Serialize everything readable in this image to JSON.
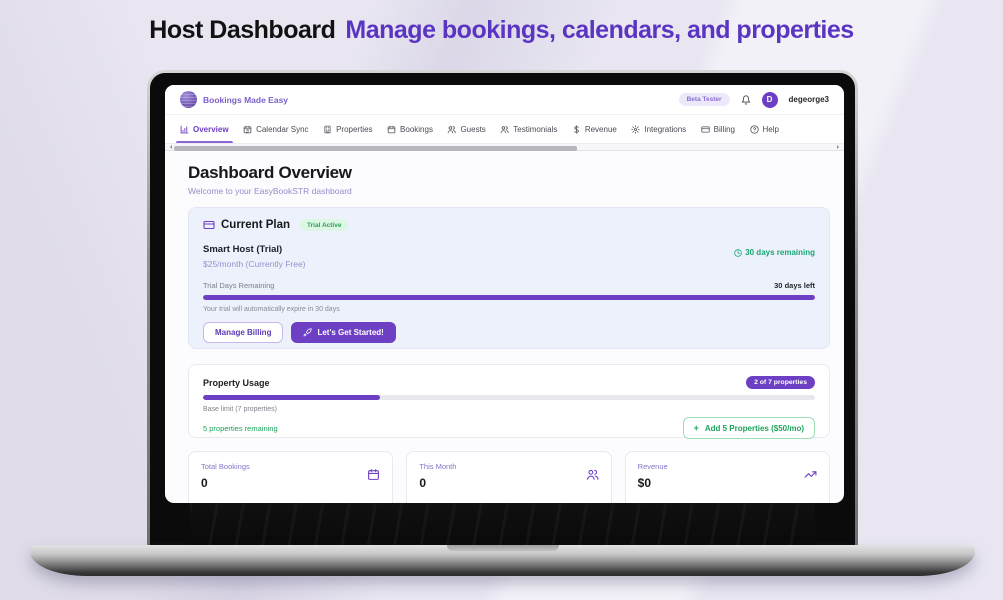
{
  "hero": {
    "title_black": "Host Dashboard",
    "title_purple": "Manage bookings, calendars, and properties"
  },
  "app_header": {
    "brand": "Bookings Made Easy",
    "beta_badge": "Beta Tester",
    "avatar_initial": "D",
    "username": "degeorge3"
  },
  "nav": {
    "tabs": [
      {
        "label": "Overview",
        "icon": "bar-chart-icon",
        "active": true
      },
      {
        "label": "Calendar Sync",
        "icon": "calendar-sync-icon",
        "active": false
      },
      {
        "label": "Properties",
        "icon": "building-icon",
        "active": false
      },
      {
        "label": "Bookings",
        "icon": "calendar-icon",
        "active": false
      },
      {
        "label": "Guests",
        "icon": "users-icon",
        "active": false
      },
      {
        "label": "Testimonials",
        "icon": "users-icon",
        "active": false
      },
      {
        "label": "Revenue",
        "icon": "dollar-icon",
        "active": false
      },
      {
        "label": "Integrations",
        "icon": "gear-icon",
        "active": false
      },
      {
        "label": "Billing",
        "icon": "credit-card-icon",
        "active": false
      },
      {
        "label": "Help",
        "icon": "help-circle-icon",
        "active": false
      }
    ]
  },
  "page": {
    "title": "Dashboard Overview",
    "subtitle": "Welcome to your EasyBookSTR dashboard"
  },
  "plan_card": {
    "title": "Current Plan",
    "status_badge": "Trial Active",
    "plan_name": "Smart Host (Trial)",
    "plan_price": "$25/month (Currently Free)",
    "days_remaining": "30 days remaining",
    "trial_label": "Trial Days Remaining",
    "days_left": "30 days left",
    "trial_progress_pct": 100,
    "expire_note": "Your trial will automatically expire in 30 days",
    "manage_billing_label": "Manage Billing",
    "get_started_label": "Let's Get Started!"
  },
  "usage_card": {
    "title": "Property Usage",
    "usage_badge": "2 of 7 properties",
    "used": 2,
    "limit": 7,
    "progress_pct": 29,
    "base_limit_note": "Base limit (7 properties)",
    "remaining_note": "5 properties remaining",
    "add_button_plus": "+",
    "add_button_label": "Add 5 Properties ($50/mo)"
  },
  "stats": [
    {
      "label": "Total Bookings",
      "value": "0",
      "icon": "calendar-icon"
    },
    {
      "label": "This Month",
      "value": "0",
      "icon": "users-icon"
    },
    {
      "label": "Revenue",
      "value": "$0",
      "icon": "trending-up-icon"
    }
  ],
  "colors": {
    "accent_purple": "#6d3fc4",
    "accent_light": "#ede9fb",
    "hero_purple": "#5a35c2",
    "green": "#1ea35c",
    "teal_green": "#17a673",
    "plan_card_bg": "#edf1fb"
  }
}
